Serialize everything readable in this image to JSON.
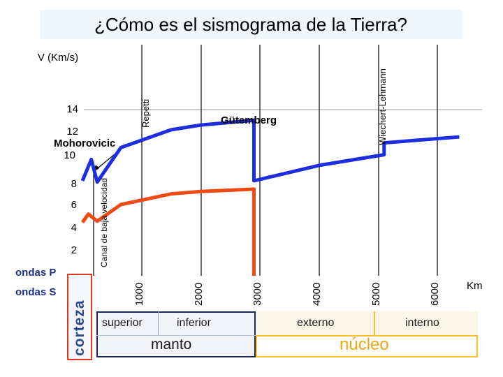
{
  "chart_data": {
    "type": "line",
    "title": "¿Cómo es el sismograma de la Tierra?",
    "ylabel": "V (Km/s)",
    "xlabel": "Km",
    "ylim": [
      0,
      15
    ],
    "xlim": [
      0,
      6371
    ],
    "y_ticks": [
      "2",
      "4",
      "6",
      "8",
      "10",
      "12",
      "14"
    ],
    "x_ticks": [
      "1000",
      "2000",
      "3000",
      "4000",
      "5000",
      "6000"
    ],
    "series": [
      {
        "name": "ondas P",
        "color": "#1c2ee0",
        "points": [
          [
            0,
            8
          ],
          [
            150,
            9.8
          ],
          [
            250,
            7.9
          ],
          [
            650,
            10.8
          ],
          [
            1500,
            12.3
          ],
          [
            2000,
            12.7
          ],
          [
            2900,
            13.1
          ],
          [
            2900,
            8.0
          ],
          [
            4000,
            9.3
          ],
          [
            5100,
            10.2
          ],
          [
            5100,
            11.2
          ],
          [
            6371,
            11.7
          ]
        ]
      },
      {
        "name": "ondas S",
        "color": "#ee4a14",
        "points": [
          [
            0,
            4.5
          ],
          [
            100,
            5.2
          ],
          [
            250,
            4.6
          ],
          [
            650,
            6.0
          ],
          [
            1500,
            6.9
          ],
          [
            2000,
            7.1
          ],
          [
            2900,
            7.3
          ],
          [
            2900,
            0
          ]
        ]
      }
    ],
    "legend": [
      "ondas P",
      "ondas S"
    ],
    "annotations": {
      "mohorovicic": "Mohorovicic",
      "low_velocity": "Canal de baja velocidad",
      "repetti": "Repetti",
      "gutemberg": "Gütemberg",
      "wiechert": "Wiechert-Lehmann"
    }
  },
  "layers": {
    "corteza": "corteza",
    "manto": "manto",
    "manto_superior": "superior",
    "manto_inferior": "inferior",
    "nucleo": "núcleo",
    "nucleo_externo": "externo",
    "nucleo_interno": "interno"
  },
  "colors": {
    "p_wave": "#1c2ee0",
    "s_wave": "#ee4a14",
    "legend_text": "#1b2e8c",
    "core": "#ffbf2a",
    "mantle_border": "#1a2a55"
  }
}
